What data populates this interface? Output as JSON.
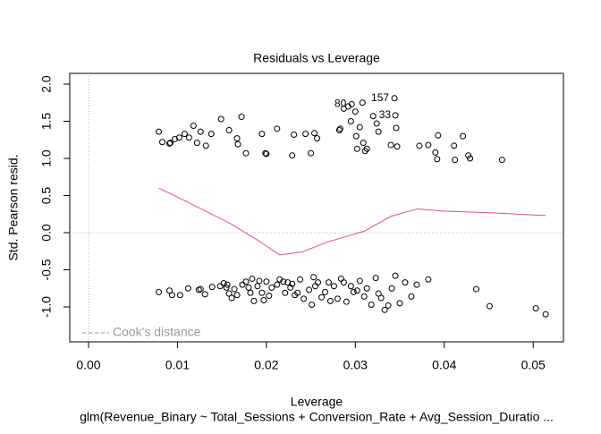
{
  "chart_data": {
    "type": "scatter",
    "title": "Residuals vs Leverage",
    "x_label": "Leverage",
    "y_label": "Std. Pearson resid.",
    "subtitle": "glm(Revenue_Binary ~ Total_Sessions + Conversion_Rate + Avg_Session_Duratio ...",
    "xlim": [
      -0.00211,
      0.0534
    ],
    "ylim": [
      -1.47,
      2.145
    ],
    "xticks": [
      {
        "value": 0,
        "label": "0.00"
      },
      {
        "value": 0.01,
        "label": "0.01"
      },
      {
        "value": 0.02,
        "label": "0.02"
      },
      {
        "value": 0.03,
        "label": "0.03"
      },
      {
        "value": 0.04,
        "label": "0.04"
      },
      {
        "value": 0.05,
        "label": "0.05"
      }
    ],
    "yticks": [
      {
        "value": -1,
        "label": "-1.0"
      },
      {
        "value": -0.5,
        "label": "-0.5"
      },
      {
        "value": 0,
        "label": "0.0"
      },
      {
        "value": 0.5,
        "label": "0.5"
      },
      {
        "value": 1,
        "label": "1.0"
      },
      {
        "value": 1.5,
        "label": "1.5"
      },
      {
        "value": 2,
        "label": "2.0"
      }
    ],
    "reference_lines": {
      "x": [
        0
      ],
      "y": [
        0
      ],
      "color": "#b0b0b0"
    },
    "points": {
      "color": "#000000",
      "x": [
        0.0079,
        0.0083,
        0.0091,
        0.0092,
        0.0097,
        0.0102,
        0.0108,
        0.0113,
        0.0118,
        0.0122,
        0.0126,
        0.0132,
        0.0138,
        0.0149,
        0.0158,
        0.0167,
        0.0168,
        0.0172,
        0.0177,
        0.0195,
        0.0199,
        0.02,
        0.0212,
        0.0229,
        0.0231,
        0.0244,
        0.025,
        0.0254,
        0.0257,
        0.0282,
        0.0283,
        0.0287,
        0.0292,
        0.0295,
        0.0296,
        0.03,
        0.0301,
        0.0302,
        0.0305,
        0.0308,
        0.0309,
        0.0311,
        0.0313,
        0.032,
        0.0324,
        0.0326,
        0.034,
        0.0344,
        0.0345,
        0.0346,
        0.0347,
        0.0372,
        0.0382,
        0.039,
        0.0392,
        0.0393,
        0.0411,
        0.0412,
        0.0421,
        0.0427,
        0.0429,
        0.0465,
        0.0079,
        0.0091,
        0.0094,
        0.0103,
        0.0112,
        0.0124,
        0.0126,
        0.0131,
        0.0139,
        0.0148,
        0.0152,
        0.0155,
        0.0156,
        0.0158,
        0.0161,
        0.0164,
        0.0167,
        0.0173,
        0.0177,
        0.018,
        0.0182,
        0.0184,
        0.0186,
        0.019,
        0.0192,
        0.0195,
        0.0197,
        0.02,
        0.0203,
        0.0206,
        0.0212,
        0.0215,
        0.0219,
        0.0221,
        0.0224,
        0.0227,
        0.0229,
        0.0232,
        0.0235,
        0.0238,
        0.0242,
        0.0248,
        0.0251,
        0.0253,
        0.0255,
        0.0258,
        0.0262,
        0.0266,
        0.027,
        0.0272,
        0.0276,
        0.028,
        0.0284,
        0.0287,
        0.029,
        0.0295,
        0.0298,
        0.0302,
        0.0305,
        0.031,
        0.0313,
        0.0318,
        0.0323,
        0.0326,
        0.0329,
        0.0333,
        0.0337,
        0.0341,
        0.0345,
        0.035,
        0.0356,
        0.0363,
        0.0369,
        0.0382,
        0.0436,
        0.0451,
        0.0503,
        0.0514
      ],
      "y": [
        1.36,
        1.22,
        1.2,
        1.21,
        1.26,
        1.28,
        1.33,
        1.28,
        1.44,
        1.21,
        1.36,
        1.17,
        1.33,
        1.53,
        1.38,
        1.27,
        1.19,
        1.56,
        1.07,
        1.33,
        1.07,
        1.06,
        1.4,
        1.04,
        1.32,
        1.33,
        1.07,
        1.34,
        1.27,
        1.38,
        1.4,
        1.67,
        1.7,
        1.5,
        1.73,
        1.63,
        1.3,
        1.13,
        1.42,
        1.75,
        1.21,
        1.1,
        1.13,
        1.57,
        1.47,
        1.36,
        1.18,
        1.81,
        1.58,
        1.41,
        1.16,
        1.17,
        1.18,
        1.08,
        0.99,
        1.31,
        1.17,
        0.98,
        1.3,
        1.04,
        1.0,
        0.98,
        -0.8,
        -0.78,
        -0.84,
        -0.84,
        -0.75,
        -0.77,
        -0.76,
        -0.83,
        -0.73,
        -0.72,
        -0.68,
        -0.74,
        -0.7,
        -0.82,
        -0.88,
        -0.76,
        -0.84,
        -0.7,
        -0.66,
        -0.74,
        -0.81,
        -0.62,
        -0.92,
        -0.72,
        -0.65,
        -0.81,
        -0.91,
        -0.66,
        -0.85,
        -0.74,
        -0.7,
        -0.63,
        -0.66,
        -0.81,
        -0.67,
        -0.74,
        -0.69,
        -0.84,
        -0.81,
        -0.63,
        -0.89,
        -0.77,
        -0.97,
        -0.6,
        -0.72,
        -0.67,
        -0.87,
        -0.8,
        -0.67,
        -0.92,
        -0.72,
        -0.89,
        -0.62,
        -0.67,
        -0.93,
        -0.72,
        -0.8,
        -0.78,
        -0.65,
        -0.86,
        -0.75,
        -0.97,
        -0.61,
        -0.82,
        -0.88,
        -1.04,
        -0.98,
        -0.75,
        -0.58,
        -0.95,
        -0.67,
        -0.86,
        -0.7,
        -0.63,
        -0.76,
        -0.99,
        -1.02,
        -1.1
      ]
    },
    "smooth": {
      "color": "#DF536B",
      "x": [
        0.0079,
        0.01,
        0.013,
        0.016,
        0.019,
        0.0215,
        0.024,
        0.027,
        0.031,
        0.034,
        0.037,
        0.04,
        0.045,
        0.0514
      ],
      "y": [
        0.6,
        0.48,
        0.3,
        0.12,
        -0.1,
        -0.3,
        -0.26,
        -0.12,
        0.02,
        0.22,
        0.32,
        0.29,
        0.27,
        0.23
      ]
    },
    "annotations": [
      {
        "x": 0.0344,
        "y": 1.81,
        "label": "157"
      },
      {
        "x": 0.0296,
        "y": 1.73,
        "label": "80"
      },
      {
        "x": 0.0346,
        "y": 1.58,
        "label": "33"
      }
    ],
    "legend": {
      "label": "Cook's distance",
      "position": "bottomleft",
      "color": "#999999"
    }
  }
}
